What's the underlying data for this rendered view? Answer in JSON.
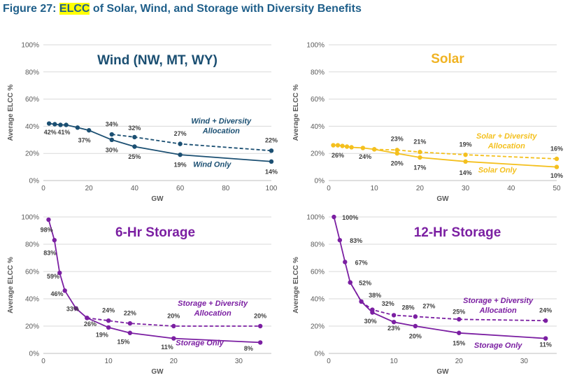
{
  "figure": {
    "prefix": "Figure 27: ",
    "highlight": "ELCC",
    "suffix": " of Solar, Wind, and Storage with Diversity Benefits"
  },
  "chart_data": [
    {
      "id": "wind",
      "type": "line",
      "title": "Wind (NW, MT, WY)",
      "title_color": "#1b4f72",
      "color": "#1b4f72",
      "xlabel": "GW",
      "ylabel": "Average ELCC %",
      "xlim": [
        0,
        100
      ],
      "ylim": [
        0,
        100
      ],
      "xticks": [
        0,
        20,
        40,
        60,
        80,
        100
      ],
      "yticks": [
        0,
        20,
        40,
        60,
        80,
        100
      ],
      "xtick_labels": [
        "0",
        "20",
        "40",
        "60",
        "80",
        "100"
      ],
      "ytick_labels": [
        "0%",
        "20%",
        "40%",
        "60%",
        "80%",
        "100%"
      ],
      "series": [
        {
          "name": "Wind + Diversity Allocation",
          "style": "dashed",
          "x": [
            30,
            40,
            60,
            100
          ],
          "values": [
            34,
            32,
            27,
            22
          ]
        },
        {
          "name": "Wind Only",
          "style": "solid",
          "x": [
            2.5,
            5,
            7.5,
            10,
            15,
            20,
            30,
            40,
            60,
            100
          ],
          "values": [
            42,
            41.5,
            41,
            41,
            39,
            37,
            30,
            25,
            19,
            14
          ]
        }
      ],
      "series_labels": [
        {
          "lines": [
            "Wind + Diversity",
            "Allocation"
          ],
          "x": 78,
          "y": 42
        },
        {
          "lines": [
            "Wind Only"
          ],
          "x": 74,
          "y": 10
        }
      ],
      "annotations": [
        {
          "text": "42%",
          "x": 3,
          "y": 34
        },
        {
          "text": "41%",
          "x": 9,
          "y": 34
        },
        {
          "text": "37%",
          "x": 18,
          "y": 28
        },
        {
          "text": "34%",
          "x": 30,
          "y": 40
        },
        {
          "text": "32%",
          "x": 40,
          "y": 37
        },
        {
          "text": "27%",
          "x": 60,
          "y": 33
        },
        {
          "text": "22%",
          "x": 100,
          "y": 28
        },
        {
          "text": "30%",
          "x": 30,
          "y": 21
        },
        {
          "text": "25%",
          "x": 40,
          "y": 16
        },
        {
          "text": "19%",
          "x": 60,
          "y": 10
        },
        {
          "text": "14%",
          "x": 100,
          "y": 5
        }
      ]
    },
    {
      "id": "solar",
      "type": "line",
      "title": "Solar",
      "title_color": "#f0b323",
      "color": "#f4c01e",
      "xlabel": "GW",
      "ylabel": "Average ELCC %",
      "xlim": [
        0,
        50
      ],
      "ylim": [
        0,
        100
      ],
      "xticks": [
        0,
        10,
        20,
        30,
        40,
        50
      ],
      "yticks": [
        0,
        20,
        40,
        60,
        80,
        100
      ],
      "xtick_labels": [
        "0",
        "10",
        "20",
        "30",
        "40",
        "50"
      ],
      "ytick_labels": [
        "0%",
        "20%",
        "40%",
        "60%",
        "80%",
        "100%"
      ],
      "series": [
        {
          "name": "Solar + Diversity Allocation",
          "style": "dashed",
          "x": [
            10,
            15,
            20,
            30,
            50
          ],
          "values": [
            23,
            22.5,
            21,
            19,
            16
          ]
        },
        {
          "name": "Solar Only",
          "style": "solid",
          "x": [
            1,
            2,
            3,
            4,
            5,
            7.5,
            10,
            15,
            20,
            30,
            50
          ],
          "values": [
            26,
            26,
            25.5,
            25,
            24.5,
            24,
            23,
            20,
            17,
            14,
            10
          ]
        }
      ],
      "series_labels": [
        {
          "lines": [
            "Solar + Diversity",
            "Allocation"
          ],
          "x": 39,
          "y": 31
        },
        {
          "lines": [
            "Solar Only"
          ],
          "x": 37,
          "y": 6
        }
      ],
      "annotations": [
        {
          "text": "26%",
          "x": 2,
          "y": 17
        },
        {
          "text": "24%",
          "x": 8,
          "y": 16
        },
        {
          "text": "23%",
          "x": 15,
          "y": 29
        },
        {
          "text": "20%",
          "x": 15,
          "y": 11
        },
        {
          "text": "21%",
          "x": 20,
          "y": 27
        },
        {
          "text": "17%",
          "x": 20,
          "y": 8
        },
        {
          "text": "19%",
          "x": 30,
          "y": 25
        },
        {
          "text": "14%",
          "x": 30,
          "y": 4
        },
        {
          "text": "16%",
          "x": 50,
          "y": 22
        },
        {
          "text": "10%",
          "x": 50,
          "y": 2
        }
      ]
    },
    {
      "id": "storage6",
      "type": "line",
      "title": "6-Hr Storage",
      "title_color": "#7b1fa2",
      "color": "#7b1fa2",
      "xlabel": "GW",
      "ylabel": "Average ELCC %",
      "xlim": [
        0,
        35
      ],
      "ylim": [
        0,
        100
      ],
      "xticks": [
        0,
        10,
        20,
        30
      ],
      "yticks": [
        0,
        20,
        40,
        60,
        80,
        100
      ],
      "xtick_labels": [
        "0",
        "10",
        "20",
        "30"
      ],
      "ytick_labels": [
        "0%",
        "20%",
        "40%",
        "60%",
        "80%",
        "100%"
      ],
      "series": [
        {
          "name": "Storage + Diversity Allocation",
          "style": "dashed",
          "x": [
            6.7,
            10,
            13.3,
            20,
            33.3
          ],
          "values": [
            26,
            24,
            22,
            20,
            20
          ]
        },
        {
          "name": "Storage Only",
          "style": "solid",
          "x": [
            0.8,
            1.7,
            2.5,
            3.3,
            5,
            6.7,
            10,
            13.3,
            20,
            33.3
          ],
          "values": [
            98,
            83,
            59,
            46,
            33,
            26,
            19,
            15,
            11,
            8
          ]
        }
      ],
      "series_labels": [
        {
          "lines": [
            "Storage + Diversity",
            "Allocation"
          ],
          "x": 26,
          "y": 35
        },
        {
          "lines": [
            "Storage Only"
          ],
          "x": 24,
          "y": 6
        }
      ],
      "annotations": [
        {
          "text": "98%",
          "x": 0.5,
          "y": 89
        },
        {
          "text": "83%",
          "x": 1,
          "y": 72
        },
        {
          "text": "59%",
          "x": 1.5,
          "y": 55
        },
        {
          "text": "46%",
          "x": 2.1,
          "y": 42
        },
        {
          "text": "33%",
          "x": 4.5,
          "y": 31
        },
        {
          "text": "26%",
          "x": 7.2,
          "y": 20
        },
        {
          "text": "24%",
          "x": 10,
          "y": 30
        },
        {
          "text": "22%",
          "x": 13.3,
          "y": 28
        },
        {
          "text": "20%",
          "x": 20,
          "y": 26
        },
        {
          "text": "20%",
          "x": 33.3,
          "y": 26
        },
        {
          "text": "19%",
          "x": 9,
          "y": 12
        },
        {
          "text": "15%",
          "x": 12.3,
          "y": 7
        },
        {
          "text": "11%",
          "x": 19,
          "y": 3
        },
        {
          "text": "8%",
          "x": 31.5,
          "y": 2
        }
      ]
    },
    {
      "id": "storage12",
      "type": "line",
      "title": "12-Hr Storage",
      "title_color": "#7b1fa2",
      "color": "#7b1fa2",
      "xlabel": "GW",
      "ylabel": "Average ELCC %",
      "xlim": [
        0,
        35
      ],
      "ylim": [
        0,
        100
      ],
      "xticks": [
        0,
        10,
        20,
        30
      ],
      "yticks": [
        0,
        20,
        40,
        60,
        80,
        100
      ],
      "xtick_labels": [
        "0",
        "10",
        "20",
        "30"
      ],
      "ytick_labels": [
        "0%",
        "20%",
        "40%",
        "60%",
        "80%",
        "100%"
      ],
      "series": [
        {
          "name": "Storage + Diversity Allocation",
          "style": "dashed",
          "x": [
            3.3,
            5,
            6.7,
            10,
            13.3,
            20,
            33.3
          ],
          "values": [
            52,
            38,
            32,
            28,
            27,
            25,
            24
          ]
        },
        {
          "name": "Storage Only",
          "style": "solid",
          "x": [
            0.8,
            1.7,
            2.5,
            3.3,
            5,
            6.7,
            10,
            13.3,
            20,
            33.3
          ],
          "values": [
            100,
            83,
            67,
            52,
            38,
            30,
            23,
            20,
            15,
            11
          ]
        }
      ],
      "series_labels": [
        {
          "lines": [
            "Storage + Diversity",
            "Allocation"
          ],
          "x": 26,
          "y": 37
        },
        {
          "lines": [
            "Storage Only"
          ],
          "x": 26,
          "y": 4
        }
      ],
      "annotations": [
        {
          "text": "100%",
          "x": 3.3,
          "y": 98
        },
        {
          "text": "83%",
          "x": 4.2,
          "y": 81
        },
        {
          "text": "67%",
          "x": 5,
          "y": 65
        },
        {
          "text": "52%",
          "x": 5.6,
          "y": 50
        },
        {
          "text": "38%",
          "x": 7.1,
          "y": 41
        },
        {
          "text": "32%",
          "x": 9.1,
          "y": 35
        },
        {
          "text": "28%",
          "x": 12.2,
          "y": 32
        },
        {
          "text": "27%",
          "x": 15.4,
          "y": 33
        },
        {
          "text": "25%",
          "x": 20,
          "y": 29
        },
        {
          "text": "24%",
          "x": 33.3,
          "y": 30
        },
        {
          "text": "30%",
          "x": 6.4,
          "y": 22
        },
        {
          "text": "23%",
          "x": 10,
          "y": 17
        },
        {
          "text": "20%",
          "x": 13.3,
          "y": 11
        },
        {
          "text": "15%",
          "x": 20,
          "y": 6
        },
        {
          "text": "11%",
          "x": 33.3,
          "y": 5
        }
      ]
    }
  ]
}
